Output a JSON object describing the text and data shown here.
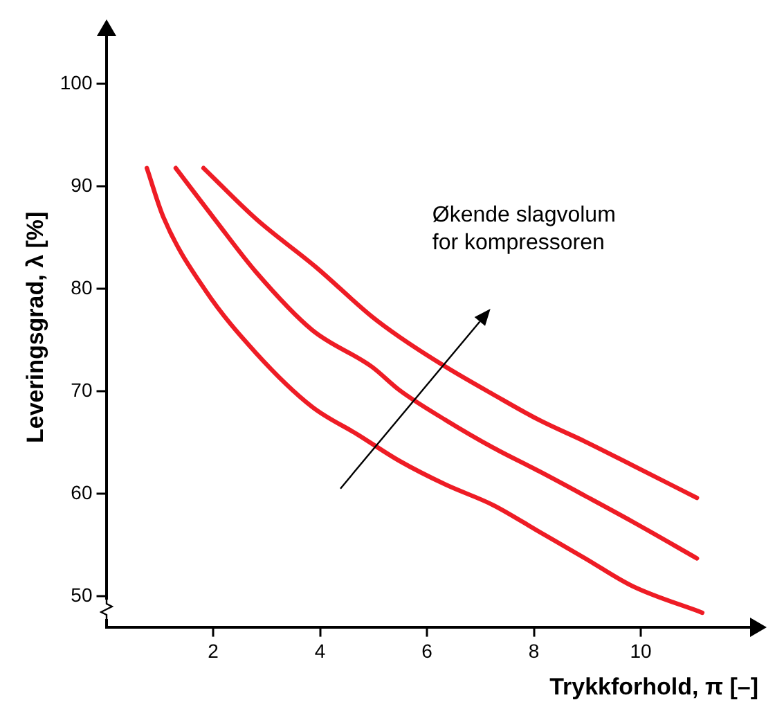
{
  "chart_data": {
    "type": "line",
    "xlabel": "Trykkforhold, π [–]",
    "ylabel": "Leveringsgrad, λ [%]",
    "annotations": [
      "Økende slagvolum\nfor kompressoren"
    ],
    "xlim": [
      0,
      12.2
    ],
    "xticks": [
      2,
      4,
      6,
      8,
      10
    ],
    "ylim": [
      47,
      105.5
    ],
    "yticks": [
      50,
      60,
      70,
      80,
      90,
      100
    ],
    "grid": false,
    "legend": false,
    "marker": "none",
    "line_style": "solid",
    "series": [
      {
        "color": "#ee1c25",
        "x": [
          0.76,
          1.07,
          1.85,
          2.81,
          3.85,
          4.7,
          5.49,
          6.35,
          7.24,
          8.1,
          8.96,
          9.84,
          11.15
        ],
        "values": [
          91.8,
          87.0,
          79.9,
          73.7,
          68.5,
          65.8,
          63.2,
          60.9,
          58.9,
          56.3,
          53.7,
          51.0,
          48.4
        ]
      },
      {
        "color": "#ee1c25",
        "x": [
          1.3,
          2.03,
          2.81,
          3.85,
          4.97,
          5.49,
          6.35,
          7.24,
          8.1,
          8.96,
          9.84,
          11.05
        ],
        "values": [
          91.8,
          86.8,
          81.6,
          76.0,
          72.4,
          70.1,
          67.2,
          64.5,
          62.2,
          59.8,
          57.3,
          53.7
        ]
      },
      {
        "color": "#ee1c25",
        "x": [
          1.82,
          2.81,
          3.93,
          4.97,
          5.49,
          6.35,
          7.24,
          8.1,
          8.96,
          9.84,
          11.05
        ],
        "values": [
          91.8,
          86.8,
          82.1,
          77.3,
          75.3,
          72.4,
          69.7,
          67.2,
          65.1,
          62.8,
          59.6
        ]
      }
    ]
  }
}
